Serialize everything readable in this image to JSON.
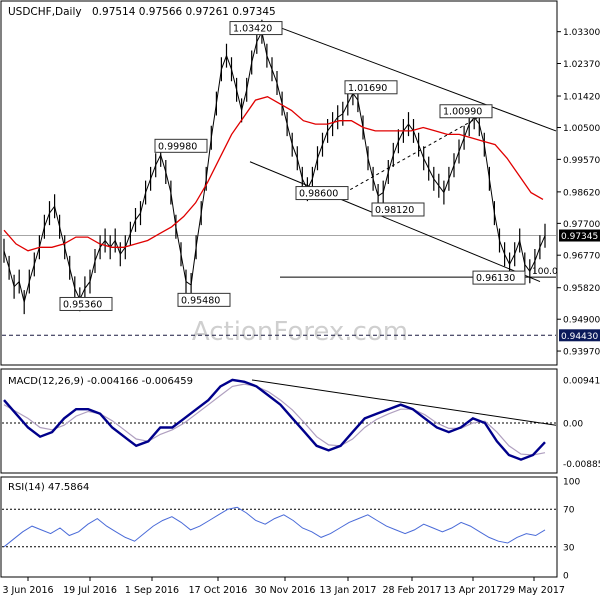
{
  "chart_data": {
    "type": "line",
    "title": "USDCHF,Daily",
    "ohlc": "0.97514 0.97566 0.97261 0.97345",
    "price_axis": {
      "ylim": [
        0.9365,
        1.0405
      ],
      "ticks": [
        "1.03300",
        "1.02370",
        "1.01420",
        "1.00500",
        "0.99570",
        "0.98620",
        "0.97700",
        "0.96770",
        "0.95820",
        "0.94900",
        "0.93970"
      ]
    },
    "x_tick_labels": [
      "3 Jun 2016",
      "19 Jul 2016",
      "1 Sep 2016",
      "17 Oct 2016",
      "30 Nov 2016",
      "13 Jan 2017",
      "28 Feb 2017",
      "13 Apr 2017",
      "29 May 2017"
    ],
    "current_price": "0.97345",
    "support_level": "0.94430",
    "fib_label": "100.0",
    "annotations": [
      "1.03420",
      "0.99980",
      "0.95360",
      "0.95480",
      "1.01690",
      "0.98600",
      "0.98120",
      "1.00990",
      "0.96130"
    ],
    "close_series": [
      0.969,
      0.964,
      0.9585,
      0.96,
      0.954,
      0.96,
      0.965,
      0.97,
      0.976,
      0.98,
      0.982,
      0.976,
      0.97,
      0.964,
      0.958,
      0.9548,
      0.958,
      0.96,
      0.966,
      0.97,
      0.972,
      0.97,
      0.972,
      0.968,
      0.97,
      0.974,
      0.978,
      0.98,
      0.986,
      0.99,
      0.994,
      0.997,
      0.992,
      0.986,
      0.976,
      0.968,
      0.96,
      0.959,
      0.97,
      0.98,
      0.99,
      1.002,
      1.012,
      1.022,
      1.026,
      1.022,
      1.016,
      1.01,
      1.016,
      1.024,
      1.03,
      1.033,
      1.026,
      1.022,
      1.018,
      1.012,
      1.006,
      1.0,
      0.996,
      0.99,
      0.987,
      0.99,
      0.996,
      1.0,
      1.004,
      1.006,
      1.008,
      1.009,
      1.012,
      1.015,
      1.013,
      1.005,
      0.996,
      0.99,
      0.985,
      0.986,
      0.992,
      0.997,
      1.001,
      1.004,
      1.006,
      1.004,
      1.0,
      0.996,
      0.993,
      0.99,
      0.988,
      0.986,
      0.99,
      0.994,
      0.998,
      1.002,
      1.006,
      1.008,
      1.006,
      1.0,
      0.99,
      0.98,
      0.972,
      0.968,
      0.965,
      0.968,
      0.972,
      0.965,
      0.963,
      0.966,
      0.97,
      0.9734
    ],
    "ma_series": [
      0.975,
      0.971,
      0.969,
      0.97,
      0.97,
      0.971,
      0.973,
      0.973,
      0.971,
      0.97,
      0.97,
      0.971,
      0.972,
      0.974,
      0.976,
      0.979,
      0.983,
      0.989,
      0.996,
      1.003,
      1.008,
      1.013,
      1.014,
      1.012,
      1.01,
      1.007,
      1.006,
      1.006,
      1.007,
      1.007,
      1.005,
      1.004,
      1.004,
      1.004,
      1.004,
      1.005,
      1.004,
      1.003,
      1.003,
      1.002,
      1.001,
      1.0,
      0.996,
      0.991,
      0.986,
      0.984
    ],
    "ma_start_index": 0,
    "ma_index_step": 2.4,
    "channel_upper": [
      [
        1.034,
        1.001
      ]
    ],
    "macd": {
      "label": "MACD(12,26,9) -0.004166 -0.006459",
      "ticks": [
        "0.009411",
        "0.00",
        "-0.008852"
      ],
      "ylim": [
        -0.0105,
        0.0107
      ],
      "macd_series": [
        0.005,
        0.002,
        -0.001,
        -0.003,
        -0.002,
        0.001,
        0.003,
        0.003,
        0.002,
        -0.001,
        -0.003,
        -0.005,
        -0.004,
        -0.001,
        -0.001,
        0.001,
        0.003,
        0.005,
        0.008,
        0.0094,
        0.009,
        0.008,
        0.006,
        0.004,
        0.001,
        -0.002,
        -0.005,
        -0.006,
        -0.005,
        -0.002,
        0.001,
        0.002,
        0.003,
        0.004,
        0.003,
        0.001,
        -0.001,
        -0.002,
        -0.001,
        0.001,
        0.0,
        -0.004,
        -0.007,
        -0.008,
        -0.007,
        -0.0042
      ],
      "signal_series": [
        0.004,
        0.0025,
        0.001,
        -0.001,
        -0.0015,
        -0.0005,
        0.0015,
        0.0025,
        0.002,
        0.0005,
        -0.0015,
        -0.0035,
        -0.004,
        -0.0025,
        -0.0015,
        0.0,
        0.002,
        0.004,
        0.006,
        0.008,
        0.0085,
        0.008,
        0.0068,
        0.005,
        0.0028,
        0.0,
        -0.003,
        -0.0048,
        -0.005,
        -0.0035,
        -0.001,
        0.0008,
        0.002,
        0.003,
        0.003,
        0.0018,
        0.0,
        -0.0012,
        -0.0012,
        0.0,
        0.0004,
        -0.002,
        -0.005,
        -0.0068,
        -0.007,
        -0.0065
      ]
    },
    "rsi": {
      "label": "RSI(14) 47.5864",
      "ticks": [
        "100",
        "70",
        "30",
        "0"
      ],
      "ylim": [
        0,
        100
      ],
      "series": [
        30,
        38,
        46,
        52,
        48,
        44,
        50,
        42,
        46,
        54,
        60,
        52,
        46,
        40,
        36,
        44,
        52,
        58,
        62,
        56,
        48,
        52,
        58,
        64,
        70,
        72,
        66,
        58,
        54,
        60,
        64,
        58,
        50,
        46,
        40,
        44,
        50,
        56,
        60,
        64,
        58,
        52,
        48,
        44,
        48,
        54,
        50,
        46,
        50,
        56,
        52,
        46,
        40,
        36,
        34,
        40,
        44,
        42,
        48
      ]
    }
  },
  "watermark": "ActionForex.com",
  "colors": {
    "price": "#000000",
    "ma": "#e00000",
    "macd": "#00008b",
    "signal": "#b0a0c0",
    "rsi": "#4a6bd8",
    "trend": "#000000",
    "level": "#0b1a5a",
    "grid": "#000000"
  }
}
